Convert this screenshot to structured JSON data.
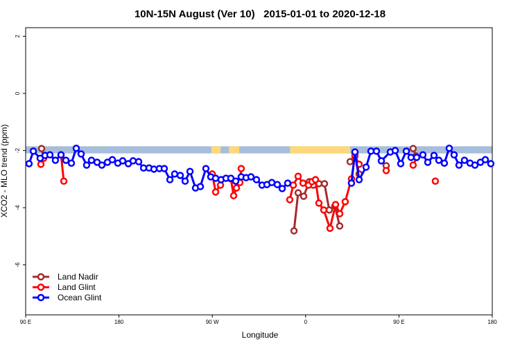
{
  "chart_data": {
    "type": "line",
    "title": "10N-15N August (Ver 10)   2015-01-01 to 2020-12-18",
    "xlabel": "Longitude",
    "ylabel": "XCO2 - MLO trend (ppm)",
    "xlim": [
      90,
      540
    ],
    "ylim": [
      -7.75,
      2.3
    ],
    "xticks": [
      {
        "value": 90,
        "label": "90 E"
      },
      180,
      {
        "value": 270,
        "label": "90 W"
      },
      {
        "value": 360,
        "label": "0"
      },
      {
        "value": 450,
        "label": "90 E"
      },
      {
        "value": 540,
        "label": "180"
      }
    ],
    "yticks": [
      -6,
      -4,
      -2,
      0,
      2
    ],
    "legend": "bottom-left",
    "band": {
      "ylim": [
        -2.1,
        -1.85
      ],
      "color": "#a6bddb"
    },
    "highlights": {
      "color": "#fdd97c",
      "ranges": [
        [
          269,
          278
        ],
        [
          286,
          296
        ],
        [
          345,
          403
        ]
      ]
    },
    "series": [
      {
        "name": "Land Nadir",
        "color": "#a52a2a",
        "x": [
          105.4,
          107.4,
          null,
          348.8,
          352.8,
          358.1,
          363.5,
          367.5,
          372.8,
          378.2,
          382.8,
          388.2,
          392.9,
          null,
          402.9,
          407.6,
          411.6,
          null,
          437.7,
          null,
          463.7,
          466.4
        ],
        "values": [
          -1.93,
          -2.24,
          null,
          -4.81,
          -3.48,
          -3.6,
          -3.09,
          -3.21,
          -3.16,
          -3.16,
          -4.08,
          -3.94,
          -4.64,
          null,
          -2.39,
          -2.12,
          -2.82,
          null,
          -2.53,
          null,
          -1.93,
          -2.19
        ]
      },
      {
        "name": "Land Glint",
        "color": "#ff0000",
        "x": [
          104.7,
          107.4,
          null,
          124.1,
          126.8,
          null,
          269.9,
          273.2,
          277.9,
          null,
          287.9,
          290.6,
          293.3,
          296.6,
          297.9,
          null,
          344.7,
          348.1,
          352.8,
          357.5,
          362.8,
          366.1,
          369.5,
          372.8,
          377.5,
          383.5,
          388.9,
          392.9,
          398.2,
          404.2,
          407.6,
          411.6,
          null,
          437.7,
          null,
          463.7,
          467.1,
          null,
          485.1
        ],
        "values": [
          -2.48,
          -2.27,
          null,
          -2.15,
          -3.07,
          null,
          -2.82,
          -3.45,
          -3.21,
          null,
          -2.99,
          -3.58,
          -3.31,
          -3.12,
          -2.63,
          null,
          -3.72,
          -3.21,
          -2.9,
          -3.14,
          -3.21,
          -3.09,
          -3.02,
          -3.84,
          -4.08,
          -4.72,
          -3.89,
          -4.21,
          -3.79,
          -2.99,
          -2.19,
          -2.48,
          null,
          -2.7,
          null,
          -2.51,
          -2.24,
          null,
          -3.07
        ]
      },
      {
        "name": "Ocean Glint",
        "color": "#0000ff",
        "x": [
          93.3,
          97.4,
          104.0,
          108.7,
          113.4,
          118.7,
          124.1,
          128.8,
          134.1,
          138.8,
          143.5,
          148.8,
          153.5,
          158.9,
          163.5,
          168.9,
          173.6,
          178.9,
          183.6,
          189.0,
          193.6,
          199.0,
          203.7,
          209.0,
          213.7,
          219.0,
          223.7,
          229.1,
          233.7,
          239.1,
          243.8,
          248.5,
          253.8,
          258.5,
          263.8,
          268.5,
          273.2,
          278.5,
          283.2,
          287.9,
          292.6,
          297.9,
          302.6,
          307.3,
          312.6,
          318.0,
          322.7,
          327.4,
          332.7,
          337.4,
          342.7,
          null,
          404.2,
          407.6,
          411.6,
          418.3,
          423.0,
          428.3,
          433.0,
          441.7,
          446.4,
          451.7,
          457.1,
          461.7,
          467.1,
          473.1,
          477.8,
          483.8,
          488.5,
          493.8,
          498.5,
          503.2,
          507.9,
          513.2,
          518.6,
          523.3,
          528.6,
          533.3,
          538.6
        ],
        "values": [
          -2.46,
          -2.02,
          -2.27,
          -2.17,
          -2.15,
          -2.34,
          -2.15,
          -2.34,
          -2.44,
          -1.92,
          -2.12,
          -2.51,
          -2.34,
          -2.41,
          -2.51,
          -2.41,
          -2.32,
          -2.44,
          -2.36,
          -2.46,
          -2.36,
          -2.39,
          -2.61,
          -2.61,
          -2.65,
          -2.63,
          -2.63,
          -3.02,
          -2.82,
          -2.87,
          -3.07,
          -2.73,
          -3.31,
          -3.26,
          -2.63,
          -2.92,
          -2.97,
          -3.02,
          -2.97,
          -2.97,
          -3.07,
          -2.92,
          -2.95,
          -2.92,
          -3.02,
          -3.21,
          -3.19,
          -3.12,
          -3.19,
          -3.33,
          -3.14,
          null,
          -3.14,
          -2.05,
          -3.02,
          -2.58,
          -2.02,
          -2.02,
          -2.36,
          -2.05,
          -2.0,
          -2.46,
          -2.02,
          -2.24,
          -2.24,
          -2.15,
          -2.41,
          -2.17,
          -2.34,
          -2.44,
          -1.92,
          -2.15,
          -2.51,
          -2.34,
          -2.44,
          -2.51,
          -2.41,
          -2.32,
          -2.46
        ]
      }
    ]
  }
}
